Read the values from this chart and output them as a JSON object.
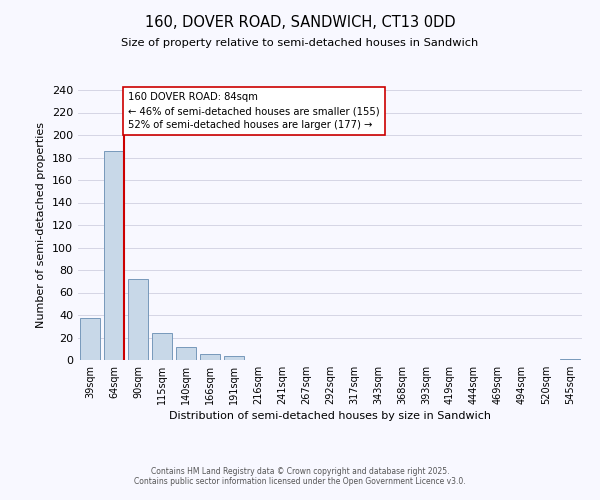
{
  "title": "160, DOVER ROAD, SANDWICH, CT13 0DD",
  "subtitle": "Size of property relative to semi-detached houses in Sandwich",
  "xlabel": "Distribution of semi-detached houses by size in Sandwich",
  "ylabel": "Number of semi-detached properties",
  "bin_labels": [
    "39sqm",
    "64sqm",
    "90sqm",
    "115sqm",
    "140sqm",
    "166sqm",
    "191sqm",
    "216sqm",
    "241sqm",
    "267sqm",
    "292sqm",
    "317sqm",
    "343sqm",
    "368sqm",
    "393sqm",
    "419sqm",
    "444sqm",
    "469sqm",
    "494sqm",
    "520sqm",
    "545sqm"
  ],
  "bar_values": [
    37,
    186,
    72,
    24,
    12,
    5,
    4,
    0,
    0,
    0,
    0,
    0,
    0,
    0,
    0,
    0,
    0,
    0,
    0,
    0,
    1
  ],
  "bar_color": "#c8d8e8",
  "bar_edge_color": "#7799bb",
  "ylim": [
    0,
    240
  ],
  "yticks": [
    0,
    20,
    40,
    60,
    80,
    100,
    120,
    140,
    160,
    180,
    200,
    220,
    240
  ],
  "property_sqm": "84sqm",
  "annotation_line1": "160 DOVER ROAD: 84sqm",
  "annotation_line2": "← 46% of semi-detached houses are smaller (155)",
  "annotation_line3": "52% of semi-detached houses are larger (177) →",
  "annotation_box_color": "#ffffff",
  "annotation_box_edge_color": "#cc0000",
  "red_line_color": "#cc0000",
  "footer1": "Contains HM Land Registry data © Crown copyright and database right 2025.",
  "footer2": "Contains public sector information licensed under the Open Government Licence v3.0.",
  "background_color": "#f8f8ff",
  "grid_color": "#d0d0e0"
}
